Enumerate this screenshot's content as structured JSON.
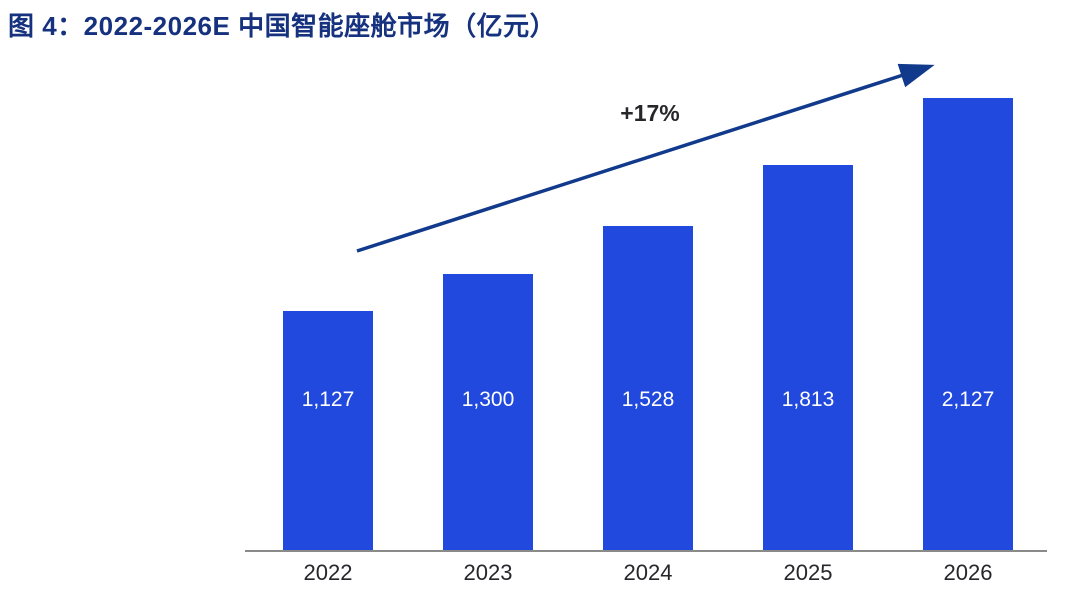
{
  "title": "图 4：2022-2026E 中国智能座舱市场（亿元）",
  "annotation": {
    "growth_label": "+17%"
  },
  "colors": {
    "bar": "#2149DE",
    "title": "#16327F",
    "arrow": "#123A8C",
    "axis_line": "#8A8A8A",
    "value_label": "#FFFFFF",
    "tick_label": "#26262B",
    "annotation_text": "#26262B",
    "background": "#FFFFFF"
  },
  "chart_data": {
    "type": "bar",
    "title": "图 4：2022-2026E 中国智能座舱市场（亿元）",
    "categories": [
      "2022",
      "2023",
      "2024",
      "2025",
      "2026"
    ],
    "values": [
      1127,
      1300,
      1528,
      1813,
      2127
    ],
    "value_labels": [
      "1,127",
      "1,300",
      "1,528",
      "1,813",
      "2,127"
    ],
    "series_name": "中国智能座舱市场（亿元）",
    "annotation": "+17%",
    "xlabel": "",
    "ylabel": "",
    "ylim": [
      0,
      2600
    ],
    "grid": false,
    "legend": false,
    "value_labels_position": "inside-fixed-height",
    "trend_arrow": true
  }
}
